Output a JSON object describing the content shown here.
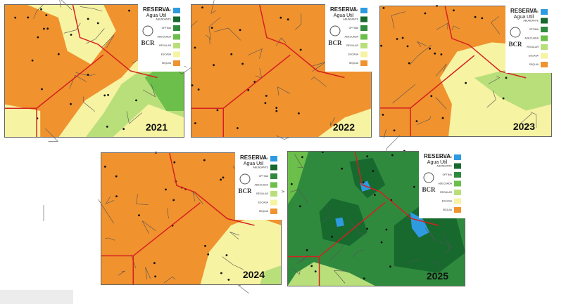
{
  "legend": {
    "title": "RESERVA",
    "subtitle": "Agua Util",
    "logo": "BCR",
    "items": [
      {
        "label": "EXCESOS",
        "color": "#2e9be0"
      },
      {
        "label": "ABUNDANTE",
        "color": "#17692e"
      },
      {
        "label": "OPTIMA",
        "color": "#2f8a3e"
      },
      {
        "label": "ADECUADA",
        "color": "#6cbf4a"
      },
      {
        "label": "REGULAR",
        "color": "#b9df7b"
      },
      {
        "label": "ESCASA",
        "color": "#f6f3a2"
      },
      {
        "label": "SEQUIA",
        "color": "#f0922e"
      }
    ]
  },
  "panels": [
    {
      "year": "2021"
    },
    {
      "year": "2022"
    },
    {
      "year": "2023"
    },
    {
      "year": "2024"
    },
    {
      "year": "2025"
    }
  ]
}
